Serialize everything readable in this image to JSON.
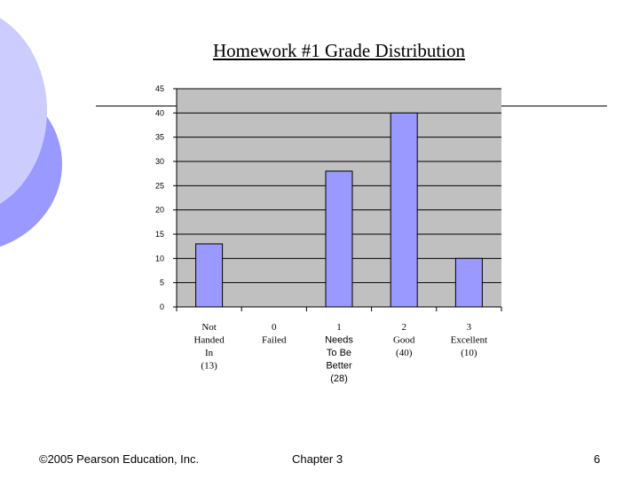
{
  "slide": {
    "title": "Homework #1 Grade Distribution",
    "footer_left": "©2005 Pearson Education, Inc.",
    "footer_center": "Chapter 3",
    "page_number": "6"
  },
  "colors": {
    "plot_bg": "#C0C0C0",
    "bar_fill": "#9999FF",
    "deco_light": "#CCCCFF",
    "deco_dark": "#9999FF"
  },
  "chart_data": {
    "type": "bar",
    "title": "Homework #1 Grade Distribution",
    "xlabel": "",
    "ylabel": "",
    "ylim": [
      0,
      45
    ],
    "yticks": [
      0,
      5,
      10,
      15,
      20,
      25,
      30,
      35,
      40,
      45
    ],
    "grid": true,
    "legend": "none",
    "categories": [
      [
        "Not",
        "Handed",
        "In",
        "(13)"
      ],
      [
        "0",
        "Failed"
      ],
      [
        "1",
        "Needs",
        "To Be",
        "Better",
        "(28)"
      ],
      [
        "2",
        "Good",
        "(40)"
      ],
      [
        "3",
        "Excellent",
        "(10)"
      ]
    ],
    "values": [
      13,
      0,
      28,
      40,
      10
    ]
  }
}
